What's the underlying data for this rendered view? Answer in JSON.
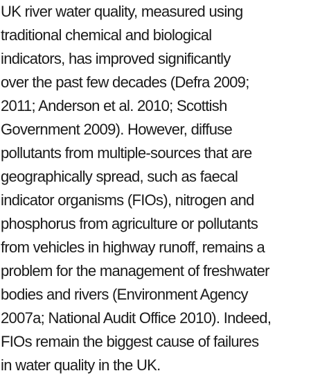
{
  "paragraph": {
    "lines": [
      "UK river water quality, measured using",
      "traditional chemical and biological",
      "indicators, has improved significantly",
      "over the past few decades (Defra 2009;",
      "2011; Anderson et al. 2010; Scottish",
      "Government 2009). However, diffuse",
      "pollutants from multiple-sources that are",
      "geographically spread, such as faecal",
      "indicator organisms (FIOs), nitrogen and",
      "phosphorus from agriculture or pollutants",
      "from vehicles in highway runoff, remains a",
      "problem for the management of freshwater",
      "bodies and rivers (Environment Agency",
      "2007a; National Audit Office 2010). Indeed,",
      "FIOs remain the biggest cause of failures",
      "in water quality in the UK."
    ]
  }
}
